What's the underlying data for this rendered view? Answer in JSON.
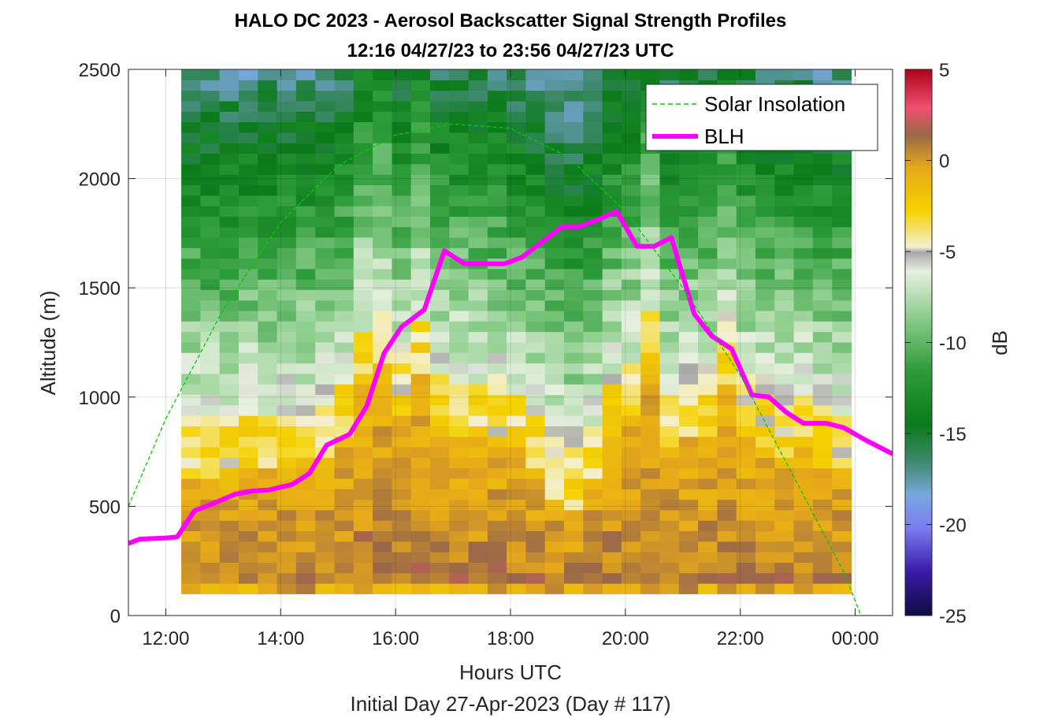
{
  "chart_data": {
    "type": "heatmap",
    "title_line1": "HALO DC 2023 - Aerosol Backscatter Signal Strength Profiles",
    "title_line2": "12:16 04/27/23 to 23:56 04/27/23  UTC",
    "xlabel": "Hours UTC",
    "xlabel2": "Initial Day 27-Apr-2023 (Day # 117)",
    "ylabel": "Altitude (m)",
    "colorbar_label": "dB",
    "xlim": [
      11.35,
      24.65
    ],
    "ylim": [
      0,
      2500
    ],
    "x_ticks": [
      12,
      14,
      16,
      18,
      20,
      22,
      24
    ],
    "x_tick_labels": [
      "12:00",
      "14:00",
      "16:00",
      "18:00",
      "20:00",
      "22:00",
      "00:00"
    ],
    "y_ticks": [
      0,
      500,
      1000,
      1500,
      2000,
      2500
    ],
    "y_tick_labels": [
      "0",
      "500",
      "1000",
      "1500",
      "2000",
      "2500"
    ],
    "clim": [
      -25,
      5
    ],
    "cbar_ticks": [
      5,
      0,
      -5,
      -10,
      -15,
      -20,
      -25
    ],
    "cbar_tick_labels": [
      "5",
      "0",
      "-5",
      "-10",
      "-15",
      "-20",
      "-25"
    ],
    "grid": true,
    "legend_position": "top-right",
    "legend": [
      {
        "label": "Solar Insolation",
        "color": "#00cc00",
        "style": "dashed"
      },
      {
        "label": "BLH",
        "color": "#ff00ff",
        "style": "solid"
      }
    ],
    "heatmap": {
      "x_start": 12.27,
      "x_end": 23.93,
      "columns": 35,
      "y_start": 100,
      "y_end": 2500,
      "rows": 50,
      "profile_note": "backscatter (dB) per column: near-surface ~0 to -9 in the mixed layer, decreasing with altitude above layer top",
      "layer_top_m": [
        800,
        800,
        810,
        820,
        830,
        840,
        860,
        880,
        950,
        1200,
        1300,
        1050,
        1250,
        1000,
        980,
        960,
        950,
        900,
        820,
        700,
        650,
        760,
        980,
        1050,
        1300,
        900,
        980,
        950,
        1200,
        950,
        900,
        880,
        900,
        850,
        820
      ]
    },
    "series": [
      {
        "name": "BLH",
        "x": [
          11.35,
          11.55,
          12.0,
          12.2,
          12.5,
          12.8,
          13.2,
          13.5,
          13.8,
          14.2,
          14.5,
          14.8,
          15.2,
          15.5,
          15.8,
          16.1,
          16.5,
          16.85,
          17.2,
          17.6,
          17.9,
          18.2,
          18.6,
          18.9,
          19.2,
          19.5,
          19.85,
          20.2,
          20.5,
          20.8,
          21.2,
          21.5,
          21.85,
          22.2,
          22.5,
          22.8,
          23.1,
          23.5,
          23.8,
          24.2,
          24.65
        ],
        "y": [
          330,
          350,
          355,
          360,
          480,
          510,
          555,
          570,
          575,
          600,
          650,
          780,
          830,
          960,
          1200,
          1320,
          1400,
          1670,
          1610,
          1610,
          1610,
          1640,
          1720,
          1780,
          1780,
          1810,
          1850,
          1690,
          1690,
          1730,
          1380,
          1280,
          1220,
          1010,
          1000,
          930,
          880,
          880,
          860,
          800,
          740
        ]
      },
      {
        "name": "Solar Insolation",
        "x": [
          11.35,
          12.0,
          13.0,
          14.0,
          15.0,
          16.0,
          17.0,
          18.0,
          19.0,
          20.0,
          21.0,
          22.0,
          23.0,
          23.8,
          24.1,
          24.65
        ],
        "y": [
          500,
          900,
          1400,
          1800,
          2060,
          2200,
          2250,
          2230,
          2100,
          1850,
          1500,
          1100,
          600,
          200,
          0,
          0
        ]
      }
    ]
  }
}
